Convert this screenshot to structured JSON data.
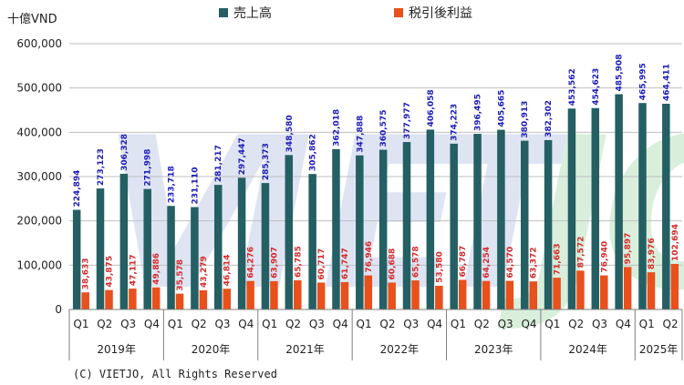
{
  "unit_label": "十億VND",
  "copyright": "(C) VIETJO, All Rights Reserved",
  "watermark": "VIETJO",
  "colors": {
    "revenue": "#245f63",
    "profit": "#e8501c",
    "revenue_label": "#1c1cb8",
    "profit_label": "#d42a2a"
  },
  "chart_data": {
    "type": "bar",
    "categories": [
      "Q1",
      "Q2",
      "Q3",
      "Q4",
      "Q1",
      "Q2",
      "Q3",
      "Q4",
      "Q1",
      "Q2",
      "Q3",
      "Q4",
      "Q1",
      "Q2",
      "Q3",
      "Q4",
      "Q1",
      "Q2",
      "Q3",
      "Q4",
      "Q1",
      "Q2",
      "Q3",
      "Q4",
      "Q1",
      "Q2"
    ],
    "groups": [
      {
        "label": "2019年",
        "count": 4
      },
      {
        "label": "2020年",
        "count": 4
      },
      {
        "label": "2021年",
        "count": 4
      },
      {
        "label": "2022年",
        "count": 4
      },
      {
        "label": "2023年",
        "count": 4
      },
      {
        "label": "2024年",
        "count": 4
      },
      {
        "label": "2025年",
        "count": 2
      }
    ],
    "series": [
      {
        "name": "売上高",
        "values": [
          224894,
          273123,
          306328,
          271998,
          233718,
          231110,
          281217,
          297447,
          285373,
          348580,
          305862,
          362018,
          347888,
          360575,
          377977,
          406058,
          374223,
          396495,
          405665,
          380913,
          382302,
          453562,
          454623,
          485908,
          465995,
          464411
        ],
        "labels": [
          "224,894",
          "273,123",
          "306,328",
          "271,998",
          "233,718",
          "231,110",
          "281,217",
          "297,447",
          "285,373",
          "348,580",
          "305,862",
          "362,018",
          "347,888",
          "360,575",
          "377,977",
          "406,058",
          "374,223",
          "396,495",
          "405,665",
          "380,913",
          "382,302",
          "453,562",
          "454,623",
          "485,908",
          "465,995",
          "464,411"
        ]
      },
      {
        "name": "税引後利益",
        "values": [
          38633,
          43875,
          47117,
          49886,
          35578,
          43279,
          46814,
          64276,
          63907,
          65785,
          60717,
          61747,
          76946,
          60688,
          65578,
          53580,
          66787,
          64254,
          64570,
          63372,
          71663,
          87572,
          76940,
          95897,
          83976,
          102694
        ],
        "labels": [
          "38,633",
          "43,875",
          "47,117",
          "49,886",
          "35,578",
          "43,279",
          "46,814",
          "64,276",
          "63,907",
          "65,785",
          "60,717",
          "61,747",
          "76,946",
          "60,688",
          "65,578",
          "53,580",
          "66,787",
          "64,254",
          "64,570",
          "63,372",
          "71,663",
          "87,572",
          "76,940",
          "95,897",
          "83,976",
          "102,694"
        ]
      }
    ],
    "yticks": [
      "0",
      "100,000",
      "200,000",
      "300,000",
      "400,000",
      "500,000",
      "600,000"
    ],
    "ylim": [
      0,
      600000
    ],
    "grid": true,
    "legend": "top-center"
  }
}
